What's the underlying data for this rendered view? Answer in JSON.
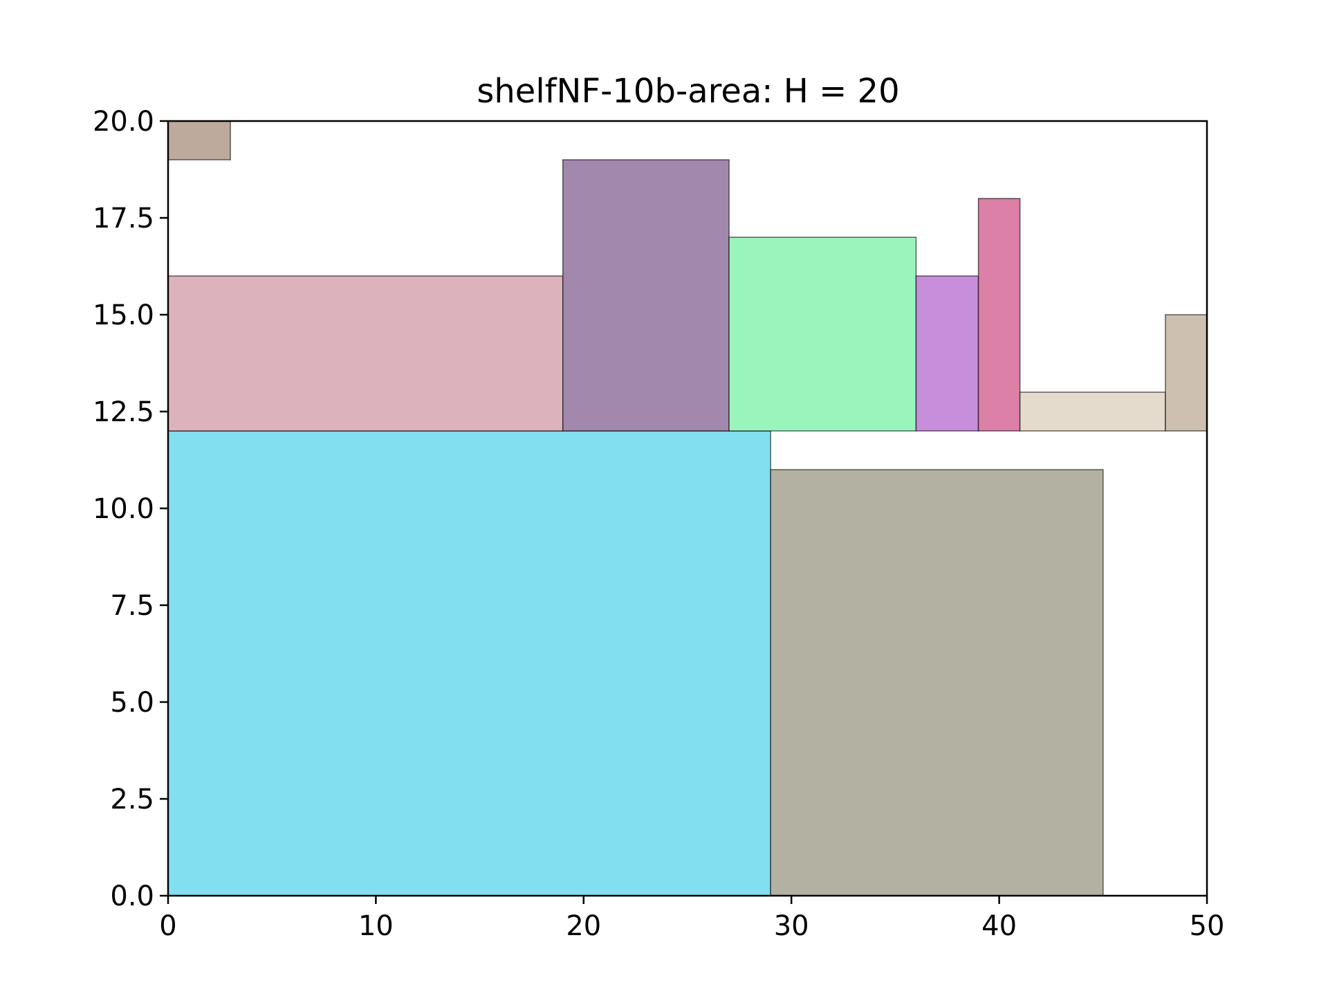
{
  "chart_data": {
    "type": "packing",
    "title": "shelfNF-10b-area: H = 20",
    "xlim": [
      0,
      50
    ],
    "ylim": [
      0,
      20
    ],
    "x_ticks": [
      0,
      10,
      20,
      30,
      40,
      50
    ],
    "y_ticks": [
      0,
      2.5,
      5,
      7.5,
      10,
      12.5,
      15,
      17.5,
      20
    ],
    "x_tick_labels": [
      "0",
      "10",
      "20",
      "30",
      "40",
      "50"
    ],
    "y_tick_labels": [
      "0.0",
      "2.5",
      "5.0",
      "7.5",
      "10.0",
      "12.5",
      "15.0",
      "17.5",
      "20.0"
    ],
    "grid": false,
    "rectangles": [
      {
        "x": 0,
        "y": 0,
        "w": 29,
        "h": 12,
        "color": "#81dfef"
      },
      {
        "x": 29,
        "y": 0,
        "w": 16,
        "h": 11,
        "color": "#b3b1a1"
      },
      {
        "x": 0,
        "y": 12,
        "w": 19,
        "h": 4,
        "color": "#dcb3bd"
      },
      {
        "x": 19,
        "y": 12,
        "w": 8,
        "h": 7,
        "color": "#a288ad"
      },
      {
        "x": 27,
        "y": 12,
        "w": 9,
        "h": 5,
        "color": "#9af5bd"
      },
      {
        "x": 36,
        "y": 12,
        "w": 3,
        "h": 4,
        "color": "#c78edb"
      },
      {
        "x": 39,
        "y": 12,
        "w": 2,
        "h": 6,
        "color": "#dc80a8"
      },
      {
        "x": 41,
        "y": 12,
        "w": 7,
        "h": 1,
        "color": "#e4dbcc"
      },
      {
        "x": 48,
        "y": 12,
        "w": 2,
        "h": 3,
        "color": "#cdc0b1"
      },
      {
        "x": 0,
        "y": 19,
        "w": 3,
        "h": 1,
        "color": "#bdaa9c"
      }
    ]
  }
}
